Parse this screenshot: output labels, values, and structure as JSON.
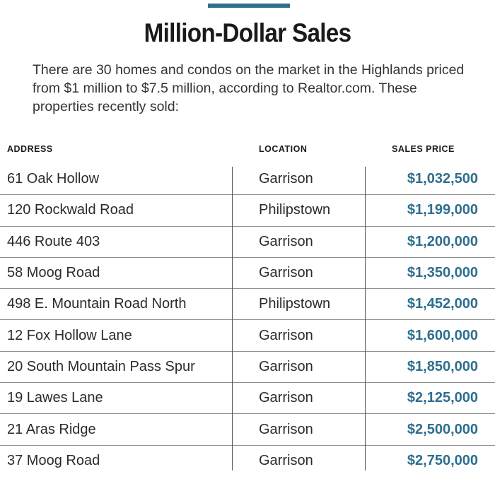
{
  "header": {
    "title": "Million-Dollar Sales",
    "intro": "There are 30 homes and condos on the market in the Highlands priced from $1 million to $7.5 million, according to Realtor.com. These properties recently sold:"
  },
  "table": {
    "columns": [
      "ADDRESS",
      "LOCATION",
      "SALES PRICE"
    ],
    "rows": [
      {
        "address": "61 Oak Hollow",
        "location": "Garrison",
        "price": "$1,032,500"
      },
      {
        "address": "120 Rockwald Road",
        "location": "Philipstown",
        "price": "$1,199,000"
      },
      {
        "address": "446 Route 403",
        "location": "Garrison",
        "price": "$1,200,000"
      },
      {
        "address": "58 Moog Road",
        "location": "Garrison",
        "price": "$1,350,000"
      },
      {
        "address": "498 E. Mountain Road North",
        "location": "Philipstown",
        "price": "$1,452,000"
      },
      {
        "address": "12 Fox Hollow Lane",
        "location": "Garrison",
        "price": "$1,600,000"
      },
      {
        "address": "20 South Mountain Pass Spur",
        "location": "Garrison",
        "price": "$1,850,000"
      },
      {
        "address": "19 Lawes Lane",
        "location": "Garrison",
        "price": "$2,125,000"
      },
      {
        "address": "21 Aras Ridge",
        "location": "Garrison",
        "price": "$2,500,000"
      },
      {
        "address": "37 Moog Road",
        "location": "Garrison",
        "price": "$2,750,000"
      }
    ]
  },
  "colors": {
    "accent": "#2e6e8e",
    "text": "#2b2b2b",
    "rule": "#8f8f8f"
  }
}
